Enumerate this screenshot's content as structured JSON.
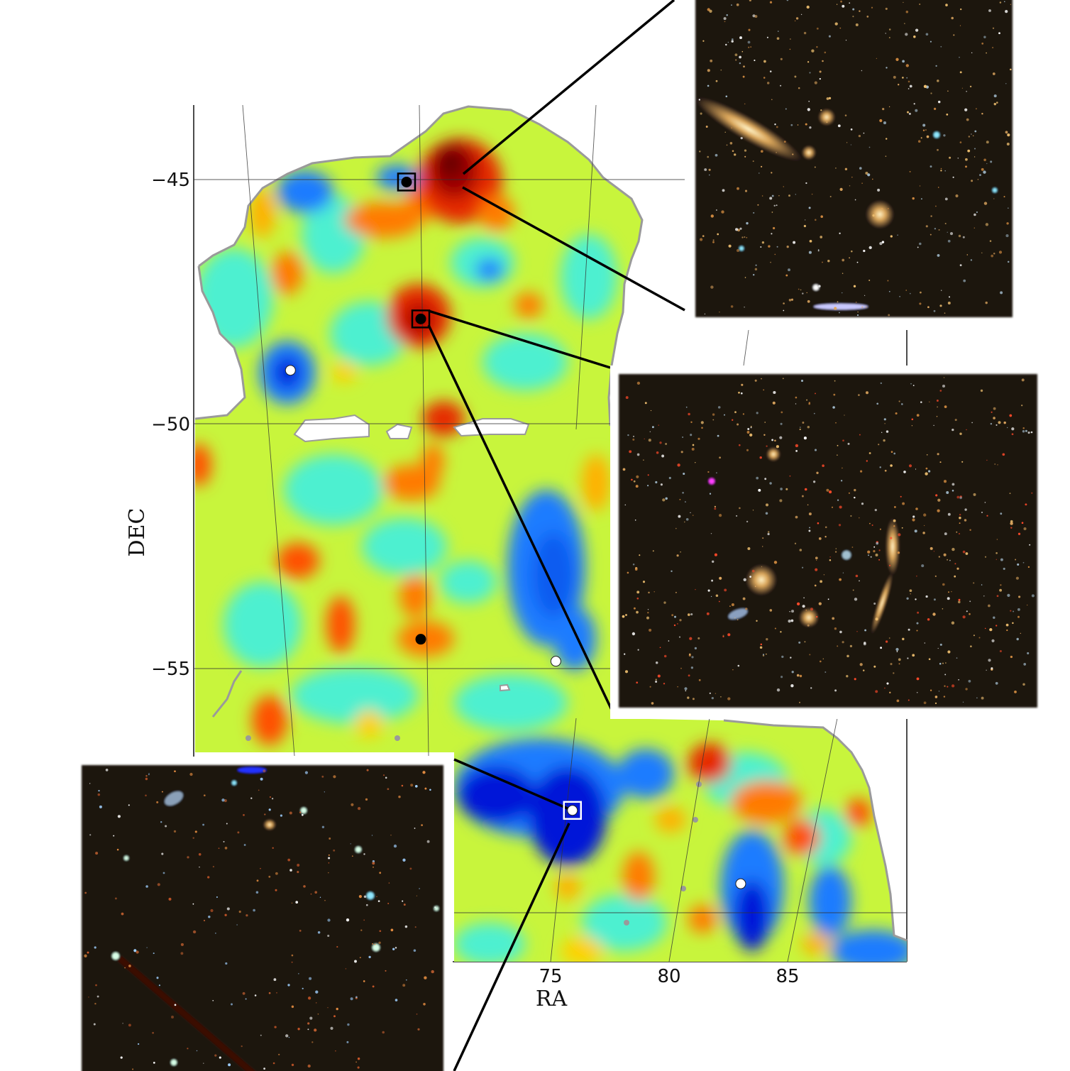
{
  "chart_data": {
    "type": "heatmap",
    "title": "",
    "xlabel": "RA",
    "ylabel": "DEC",
    "x_ticks": [
      75,
      80,
      85
    ],
    "y_ticks": [
      -45,
      -50,
      -55
    ],
    "grid": true,
    "colormap": "jet",
    "colors": {
      "peak": "#7a0000",
      "high": "#e62a00",
      "mid_high": "#ffb000",
      "mid": "#c8f53c",
      "mid_low": "#4df0d0",
      "low": "#1e7cff",
      "void": "#0018d8",
      "mask_edge": "#9a9a9a",
      "inset_bg": "#1d1411"
    },
    "markers": [
      {
        "ra": 69.2,
        "dec": -45.05,
        "fill": "black",
        "boxed": true
      },
      {
        "ra": 69.8,
        "dec": -47.85,
        "fill": "black",
        "boxed": true
      },
      {
        "ra": 69.8,
        "dec": -54.4,
        "fill": "black",
        "boxed": false
      },
      {
        "ra": 64.3,
        "dec": -48.9,
        "fill": "white",
        "boxed": false
      },
      {
        "ra": 75.5,
        "dec": -54.85,
        "fill": "white",
        "boxed": false
      },
      {
        "ra": 76.2,
        "dec": -57.9,
        "fill": "white",
        "boxed": true
      },
      {
        "ra": 83.3,
        "dec": -59.4,
        "fill": "white",
        "boxed": false
      }
    ],
    "insets": [
      {
        "name": "cluster-cutout-north",
        "linked_marker": 0
      },
      {
        "name": "cluster-cutout-middle",
        "linked_marker": 1
      },
      {
        "name": "void-cutout-south",
        "linked_marker": 5
      }
    ]
  }
}
